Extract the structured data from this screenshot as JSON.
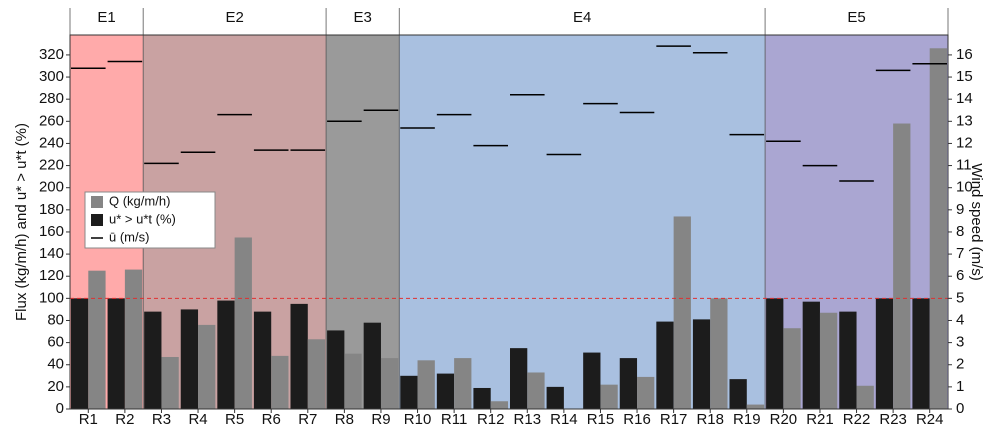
{
  "chart_data": {
    "type": "bar",
    "y_label": "Flux (kg/m/h) and u* > u*t (%)",
    "y2_label": "Wind speed (m/s)",
    "categories": [
      "R1",
      "R2",
      "R3",
      "R4",
      "R5",
      "R6",
      "R7",
      "R8",
      "R9",
      "R10",
      "R11",
      "R12",
      "R13",
      "R14",
      "R15",
      "R16",
      "R17",
      "R18",
      "R19",
      "R20",
      "R21",
      "R22",
      "R23",
      "R24"
    ],
    "groups": [
      {
        "label": "E1",
        "span": 2,
        "color": "#ffaaaa"
      },
      {
        "label": "E2",
        "span": 5,
        "color": "#c9a2a2"
      },
      {
        "label": "E3",
        "span": 2,
        "color": "#9a9a9a"
      },
      {
        "label": "E4",
        "span": 10,
        "color": "#a9c0e0"
      },
      {
        "label": "E5",
        "span": 5,
        "color": "#aaa6d2"
      }
    ],
    "series": [
      {
        "name": "Q (kg/m/h)",
        "color": "#858585",
        "values": [
          125,
          126,
          47,
          76,
          155,
          48,
          63,
          50,
          46,
          44,
          46,
          7,
          33,
          0,
          22,
          29,
          174,
          100,
          4,
          73,
          87,
          21,
          258,
          326
        ]
      },
      {
        "name": "u* > u*t (%)",
        "color": "#1c1c1c",
        "values": [
          100,
          100,
          88,
          90,
          98,
          88,
          95,
          71,
          78,
          30,
          32,
          19,
          55,
          20,
          51,
          46,
          79,
          81,
          27,
          100,
          97,
          88,
          100,
          100
        ]
      },
      {
        "name": "ū (m/s)",
        "color": "#000000",
        "axis": "y2",
        "values": [
          15.4,
          15.7,
          11.1,
          11.6,
          13.3,
          11.7,
          11.7,
          13.0,
          13.5,
          12.7,
          13.3,
          11.9,
          14.2,
          11.5,
          13.8,
          13.4,
          16.4,
          16.1,
          12.4,
          12.1,
          11.0,
          10.3,
          15.3,
          15.6
        ]
      }
    ],
    "reference_line": {
      "value": 100,
      "color": "#e03030"
    },
    "ylim": [
      0,
      338
    ],
    "yticks": [
      0,
      20,
      40,
      60,
      80,
      100,
      120,
      140,
      160,
      180,
      200,
      220,
      240,
      260,
      280,
      300,
      320
    ],
    "y2lim": [
      0,
      16.9
    ],
    "y2ticks": [
      0,
      1,
      2,
      3,
      4,
      5,
      6,
      7,
      8,
      9,
      10,
      11,
      12,
      13,
      14,
      15,
      16
    ]
  }
}
